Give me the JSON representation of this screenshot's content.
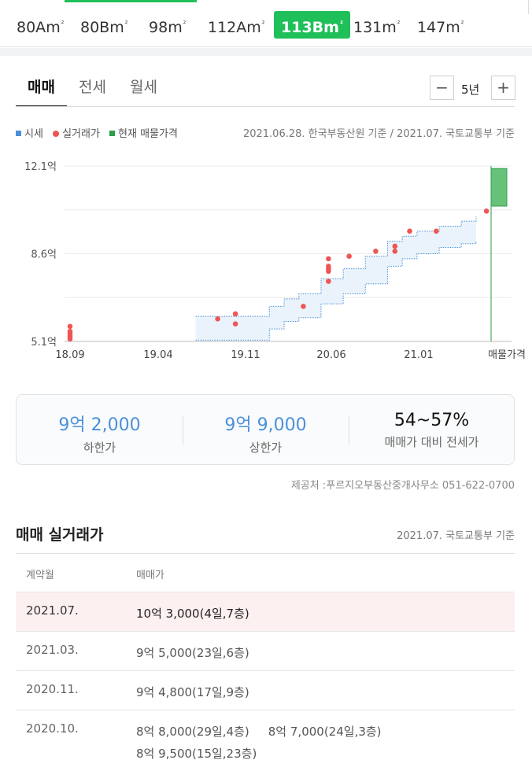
{
  "size_tabs": [
    {
      "num": "80A",
      "unit": "m",
      "sup": "²",
      "active": false
    },
    {
      "num": "80B",
      "unit": "m",
      "sup": "²",
      "active": false
    },
    {
      "num": "98",
      "unit": "m",
      "sup": "²",
      "active": false
    },
    {
      "num": "112A",
      "unit": "m",
      "sup": "²",
      "active": false
    },
    {
      "num": "113B",
      "unit": "m",
      "sup": "²",
      "active": true
    },
    {
      "num": "131",
      "unit": "m",
      "sup": "²",
      "active": false
    },
    {
      "num": "147",
      "unit": "m",
      "sup": "²",
      "active": false
    }
  ],
  "deal_tabs": [
    "매매",
    "전세",
    "월세"
  ],
  "period": {
    "minus": "−",
    "label": "5년",
    "plus": "+"
  },
  "legend": {
    "items": [
      {
        "label": "시세",
        "color": "#4a90d9",
        "shape": "square"
      },
      {
        "label": "실거래가",
        "color": "#ee5555",
        "shape": "dot"
      },
      {
        "label": "현재 매물가격",
        "color": "#2e9e48",
        "shape": "square"
      }
    ],
    "source": "2021.06.28. 한국부동산원 기준 / 2021.07. 국토교통부 기준"
  },
  "chart_data": {
    "type": "scatter",
    "y_labels": [
      "12.1억",
      "8.6억",
      "5.1억"
    ],
    "x_labels": [
      "18.09",
      "19.04",
      "19.11",
      "20.06",
      "21.01",
      "매물가격"
    ],
    "ylim": [
      5.1,
      12.1
    ],
    "grid": true,
    "colors": {
      "band": "#4a90d9",
      "dots": "#ee5555",
      "listing": "#2e9e48"
    },
    "market_band": {
      "x": [
        2019.6,
        2019.95,
        2020.1,
        2020.2,
        2020.3,
        2020.45,
        2020.6,
        2020.75,
        2020.9,
        2021.0,
        2021.1,
        2021.25,
        2021.4,
        2021.5
      ],
      "lower": [
        5.15,
        5.15,
        5.6,
        5.9,
        6.05,
        6.6,
        7.0,
        7.4,
        8.1,
        8.4,
        8.6,
        8.85,
        9.0,
        9.1
      ],
      "upper": [
        6.1,
        6.1,
        6.5,
        6.8,
        7.0,
        7.6,
        8.0,
        8.5,
        9.1,
        9.3,
        9.5,
        9.7,
        9.9,
        10.1
      ]
    },
    "real_deals": {
      "x": [
        2018.75,
        2018.75,
        2018.75,
        2018.75,
        2018.75,
        2019.75,
        2019.87,
        2019.87,
        2020.33,
        2020.5,
        2020.5,
        2020.5,
        2020.5,
        2020.5,
        2020.64,
        2020.82,
        2020.95,
        2020.95,
        2021.05,
        2021.23,
        2021.57
      ],
      "y": [
        5.2,
        5.3,
        5.4,
        5.5,
        5.7,
        6.0,
        5.8,
        6.2,
        6.5,
        7.5,
        7.9,
        8.0,
        8.1,
        8.4,
        8.5,
        8.7,
        8.7,
        8.9,
        9.5,
        9.5,
        10.3
      ]
    },
    "listing_range": [
      10.5,
      12.0
    ]
  },
  "summary": [
    {
      "value": "9억 2,000",
      "label": "하한가"
    },
    {
      "value": "9억 9,000",
      "label": "상한가"
    },
    {
      "value": "54~57%",
      "label": "매매가 대비 전세가"
    }
  ],
  "provider": "제공처 :푸르지오부동산중개사무소 051-622-0700",
  "transactions": {
    "title": "매매 실거래가",
    "source": "2021.07. 국토교통부 기준",
    "headers": [
      "계약월",
      "매매가"
    ],
    "rows": [
      {
        "date": "2021.07.",
        "prices": [
          "10억 3,000(4일,7층)"
        ],
        "highlight": true
      },
      {
        "date": "2021.03.",
        "prices": [
          "9억 5,000(23일,6층)"
        ],
        "highlight": false
      },
      {
        "date": "2020.11.",
        "prices": [
          "9억 4,800(17일,9층)"
        ],
        "highlight": false
      },
      {
        "date": "2020.10.",
        "prices": [
          "8억 8,000(29일,4층)",
          "8억 7,000(24일,3층)",
          "8억 9,500(15일,23층)"
        ],
        "highlight": false
      }
    ]
  }
}
